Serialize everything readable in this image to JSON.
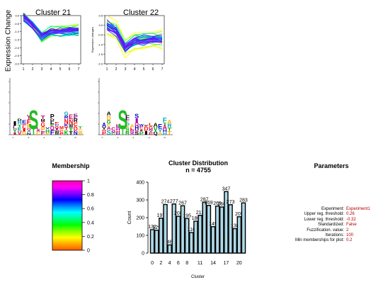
{
  "profiles": {
    "ylabel": "Expression Change",
    "panels": [
      {
        "title": "Cluster 21",
        "inner_ylabel": "",
        "yticks": [
          "0.0",
          "-0.5",
          "-1.0",
          "-1.5",
          "-2.0",
          "-2.5",
          "-3.0"
        ],
        "xticks": [
          "1",
          "2",
          "3",
          "4",
          "5",
          "6",
          "7"
        ],
        "mean": [
          0.0,
          -0.55,
          -1.25,
          -0.95,
          -0.95,
          -0.9,
          -0.9
        ]
      },
      {
        "title": "Cluster 22",
        "inner_ylabel": "Expression changes",
        "yticks": [
          "0.5",
          "0.0",
          "-0.5",
          "-1.0",
          "-1.5",
          "-2.0"
        ],
        "xticks": [
          "1",
          "2",
          "3",
          "4",
          "5",
          "6",
          "7"
        ],
        "mean": [
          0.0,
          -0.25,
          -1.15,
          -0.8,
          -0.75,
          -0.7,
          -0.7
        ]
      }
    ]
  },
  "logos": [
    {
      "main_letter": "S",
      "second_letter": "T"
    },
    {
      "main_letter": "S",
      "second_letter": "T"
    }
  ],
  "membership": {
    "title": "Membership",
    "ticks": [
      "1",
      "0.8",
      "0.6",
      "0.4",
      "0.2",
      "0"
    ],
    "colors": [
      "#ff00aa",
      "#ff00ff",
      "#8800ff",
      "#0000ff",
      "#0088ff",
      "#00ffff",
      "#00ff88",
      "#00ff00",
      "#88ff00",
      "#ffff00",
      "#ffaa00",
      "#ff5500"
    ]
  },
  "chart_data": {
    "type": "bar",
    "title": "Cluster Distribution",
    "subtitle": "n = 4755",
    "xlabel": "Cluster",
    "ylabel": "Count",
    "ylim": [
      0,
      400
    ],
    "yticks": [
      0,
      100,
      200,
      300,
      400
    ],
    "xticks": [
      0,
      2,
      4,
      6,
      8,
      11,
      14,
      17,
      20
    ],
    "categories": [
      "0",
      "1",
      "2",
      "3",
      "4",
      "5",
      "6",
      "7",
      "8",
      "9",
      "10",
      "11",
      "12",
      "13",
      "14",
      "15",
      "16",
      "17",
      "18",
      "19",
      "20",
      "21"
    ],
    "values": [
      132,
      129,
      197,
      274,
      46,
      277,
      208,
      267,
      195,
      116,
      180,
      213,
      287,
      269,
      149,
      265,
      260,
      347,
      273,
      138,
      205,
      283
    ],
    "bar_color": "#add8e6"
  },
  "parameters": {
    "title": "Parameters",
    "rows": [
      {
        "key": "Experiment:",
        "value": "Experiment1"
      },
      {
        "key": "Upper reg. threshold:",
        "value": "0.26"
      },
      {
        "key": "Lower reg. threshold:",
        "value": "-0.32"
      },
      {
        "key": "Standardized:",
        "value": "False"
      },
      {
        "key": "Fuzzification. value:",
        "value": "2"
      },
      {
        "key": "Iterations:",
        "value": "100"
      },
      {
        "key": "Min memberships for plot:",
        "value": "0.2"
      }
    ]
  }
}
